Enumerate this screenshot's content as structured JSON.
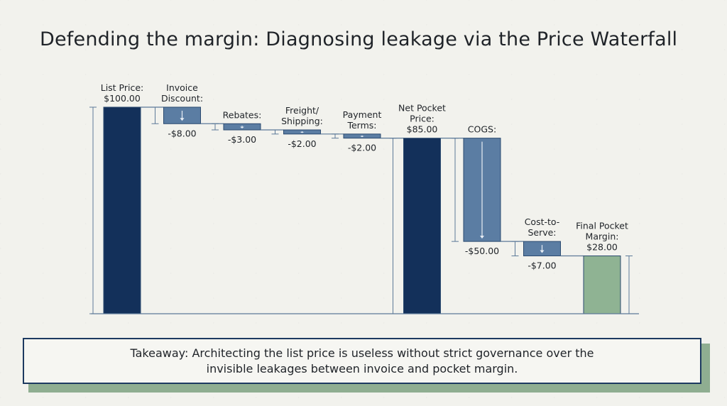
{
  "title": "Defending the margin: Diagnosing leakage via the Price Waterfall",
  "chart_data": {
    "type": "waterfall",
    "ylim": [
      0,
      100
    ],
    "grid": false,
    "items": [
      {
        "label": [
          "List Price:"
        ],
        "value_label": "$100.00",
        "kind": "total",
        "value": 100
      },
      {
        "label": [
          "Invoice",
          "Discount:"
        ],
        "value_label": "-$8.00",
        "kind": "decrease",
        "value": -8
      },
      {
        "label": [
          "Rebates:"
        ],
        "value_label": "-$3.00",
        "kind": "decrease",
        "value": -3
      },
      {
        "label": [
          "Freight/",
          "Shipping:"
        ],
        "value_label": "-$2.00",
        "kind": "decrease",
        "value": -2
      },
      {
        "label": [
          "Payment",
          "Terms:"
        ],
        "value_label": "-$2.00",
        "kind": "decrease",
        "value": -2
      },
      {
        "label": [
          "Net Pocket",
          "Price:"
        ],
        "value_label": "$85.00",
        "kind": "total",
        "value": 85
      },
      {
        "label": [
          "COGS:"
        ],
        "value_label": "-$50.00",
        "kind": "decrease",
        "value": -50
      },
      {
        "label": [
          "Cost-to-",
          "Serve:"
        ],
        "value_label": "-$7.00",
        "kind": "decrease",
        "value": -7
      },
      {
        "label": [
          "Final Pocket",
          "Margin:"
        ],
        "value_label": "$28.00",
        "kind": "result",
        "value": 28
      }
    ],
    "colors": {
      "total": "#13305a",
      "decrease": "#5b7da3",
      "result": "#8fb393",
      "line": "#5d7a99"
    }
  },
  "takeaway": "Takeaway: Architecting the list price is useless without strict governance over the invisible leakages between invoice and pocket margin."
}
